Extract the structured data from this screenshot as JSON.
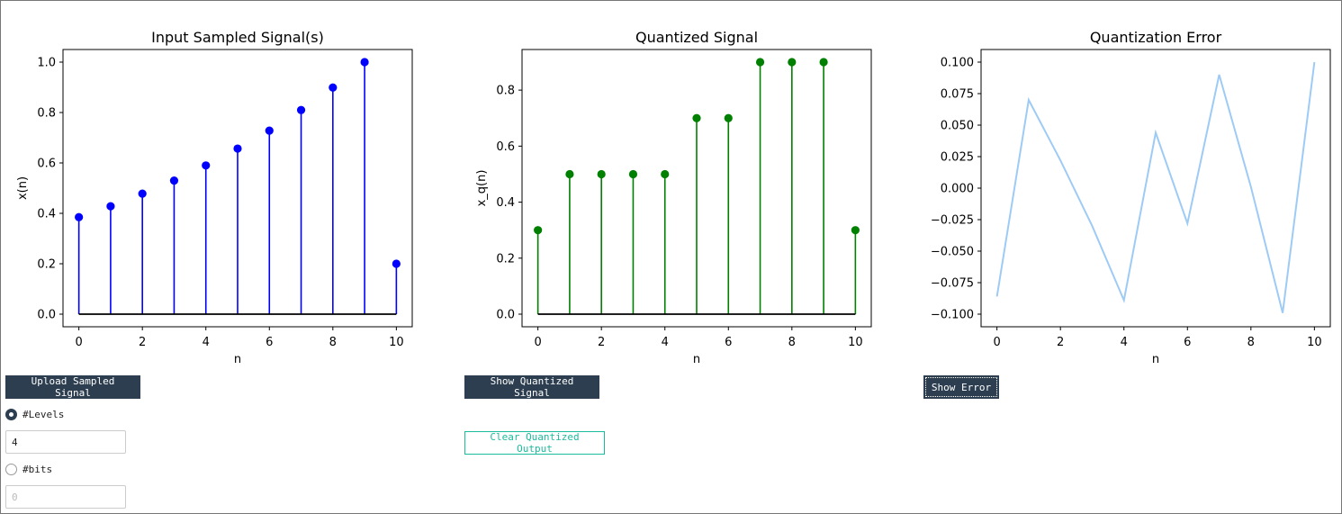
{
  "charts": [
    {
      "id": "input",
      "chart_data": {
        "type": "stem",
        "title": "Input Sampled Signal(s)",
        "xlabel": "n",
        "ylabel": "x(n)",
        "x": [
          0,
          1,
          2,
          3,
          4,
          5,
          6,
          7,
          8,
          9,
          10
        ],
        "values": [
          0.385,
          0.428,
          0.478,
          0.53,
          0.59,
          0.657,
          0.728,
          0.81,
          0.899,
          1.0,
          0.2
        ],
        "xlim": [
          -0.5,
          10.5
        ],
        "ylim": [
          -0.05,
          1.05
        ],
        "xticks": [
          0,
          2,
          4,
          6,
          8,
          10
        ],
        "yticks": [
          0.0,
          0.2,
          0.4,
          0.6,
          0.8,
          1.0
        ],
        "ytick_labels": [
          "0.0",
          "0.2",
          "0.4",
          "0.6",
          "0.8",
          "1.0"
        ],
        "color": "#0000ff"
      }
    },
    {
      "id": "quantized",
      "chart_data": {
        "type": "stem",
        "title": "Quantized Signal",
        "xlabel": "n",
        "ylabel": "x_q(n)",
        "x": [
          0,
          1,
          2,
          3,
          4,
          5,
          6,
          7,
          8,
          9,
          10
        ],
        "values": [
          0.3,
          0.5,
          0.5,
          0.5,
          0.5,
          0.7,
          0.7,
          0.9,
          0.9,
          0.9,
          0.3
        ],
        "xlim": [
          -0.5,
          10.5
        ],
        "ylim": [
          -0.045,
          0.945
        ],
        "xticks": [
          0,
          2,
          4,
          6,
          8,
          10
        ],
        "yticks": [
          0.0,
          0.2,
          0.4,
          0.6,
          0.8
        ],
        "ytick_labels": [
          "0.0",
          "0.2",
          "0.4",
          "0.6",
          "0.8"
        ],
        "color": "#008000"
      }
    },
    {
      "id": "error",
      "chart_data": {
        "type": "line",
        "title": "Quantization Error",
        "xlabel": "n",
        "ylabel": "",
        "x": [
          0,
          1,
          2,
          3,
          4,
          5,
          6,
          7,
          8,
          9,
          10
        ],
        "values": [
          -0.086,
          0.07,
          0.022,
          -0.03,
          -0.089,
          0.044,
          -0.028,
          0.09,
          0.001,
          -0.099,
          0.1
        ],
        "xlim": [
          -0.5,
          10.5
        ],
        "ylim": [
          -0.11,
          0.11
        ],
        "xticks": [
          0,
          2,
          4,
          6,
          8,
          10
        ],
        "yticks": [
          -0.1,
          -0.075,
          -0.05,
          -0.025,
          0.0,
          0.025,
          0.05,
          0.075,
          0.1
        ],
        "ytick_labels": [
          "−0.100",
          "−0.075",
          "−0.050",
          "−0.025",
          "0.000",
          "0.025",
          "0.050",
          "0.075",
          "0.100"
        ],
        "color": "#9ecbf5"
      }
    }
  ],
  "controls": {
    "upload_label": "Upload Sampled Signal",
    "show_quantized_label": "Show Quantized Signal",
    "show_error_label": "Show Error",
    "clear_label": "Clear Quantized Output",
    "levels_label": "#Levels",
    "levels_value": "4",
    "levels_checked": true,
    "bits_label": "#bits",
    "bits_placeholder": "0",
    "bits_checked": false
  }
}
